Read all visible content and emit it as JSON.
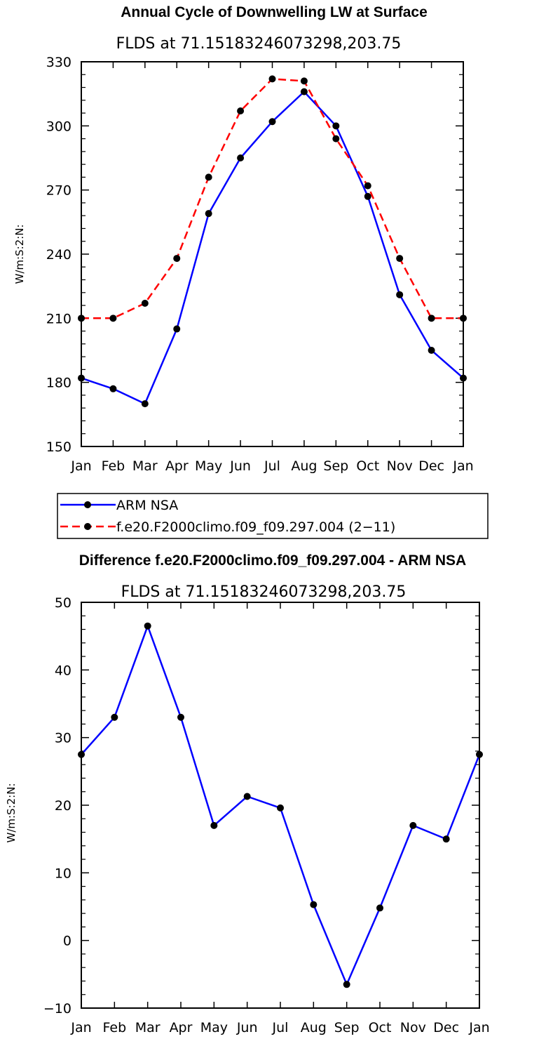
{
  "chart_data": [
    {
      "type": "line",
      "title": "Annual Cycle of Downwelling LW at Surface",
      "subtitle": "FLDS at 71.15183246073298,203.75",
      "xlabel": "",
      "ylabel": "W/m:S:2:N:",
      "categories": [
        "Jan",
        "Feb",
        "Mar",
        "Apr",
        "May",
        "Jun",
        "Jul",
        "Aug",
        "Sep",
        "Oct",
        "Nov",
        "Dec",
        "Jan"
      ],
      "ylim": [
        150,
        330
      ],
      "yticks": [
        150,
        180,
        210,
        240,
        270,
        300,
        330
      ],
      "grid": false,
      "legend_position": "below",
      "series": [
        {
          "name": "ARM NSA",
          "color": "#0000ff",
          "dash": "solid",
          "values": [
            182,
            177,
            170,
            205,
            259,
            285,
            302,
            316,
            300,
            267,
            221,
            195,
            182
          ]
        },
        {
          "name": "f.e20.F2000climo.f09_f09.297.004 (2−11)",
          "color": "#ff0000",
          "dash": "dashed",
          "values": [
            210,
            210,
            217,
            238,
            276,
            307,
            322,
            321,
            294,
            272,
            238,
            210,
            210
          ]
        }
      ]
    },
    {
      "type": "line",
      "title": "Difference f.e20.F2000climo.f09_f09.297.004 - ARM NSA",
      "subtitle": "FLDS at 71.15183246073298,203.75",
      "xlabel": "",
      "ylabel": "W/m:S:2:N:",
      "categories": [
        "Jan",
        "Feb",
        "Mar",
        "Apr",
        "May",
        "Jun",
        "Jul",
        "Aug",
        "Sep",
        "Oct",
        "Nov",
        "Dec",
        "Jan"
      ],
      "ylim": [
        -10,
        50
      ],
      "yticks": [
        -10,
        0,
        10,
        20,
        30,
        40,
        50
      ],
      "grid": false,
      "series": [
        {
          "color": "#0000ff",
          "dash": "solid",
          "values": [
            27.5,
            33,
            46.5,
            33,
            17,
            21.3,
            19.6,
            5.3,
            -6.5,
            4.8,
            17,
            15,
            27.5
          ]
        }
      ]
    }
  ]
}
